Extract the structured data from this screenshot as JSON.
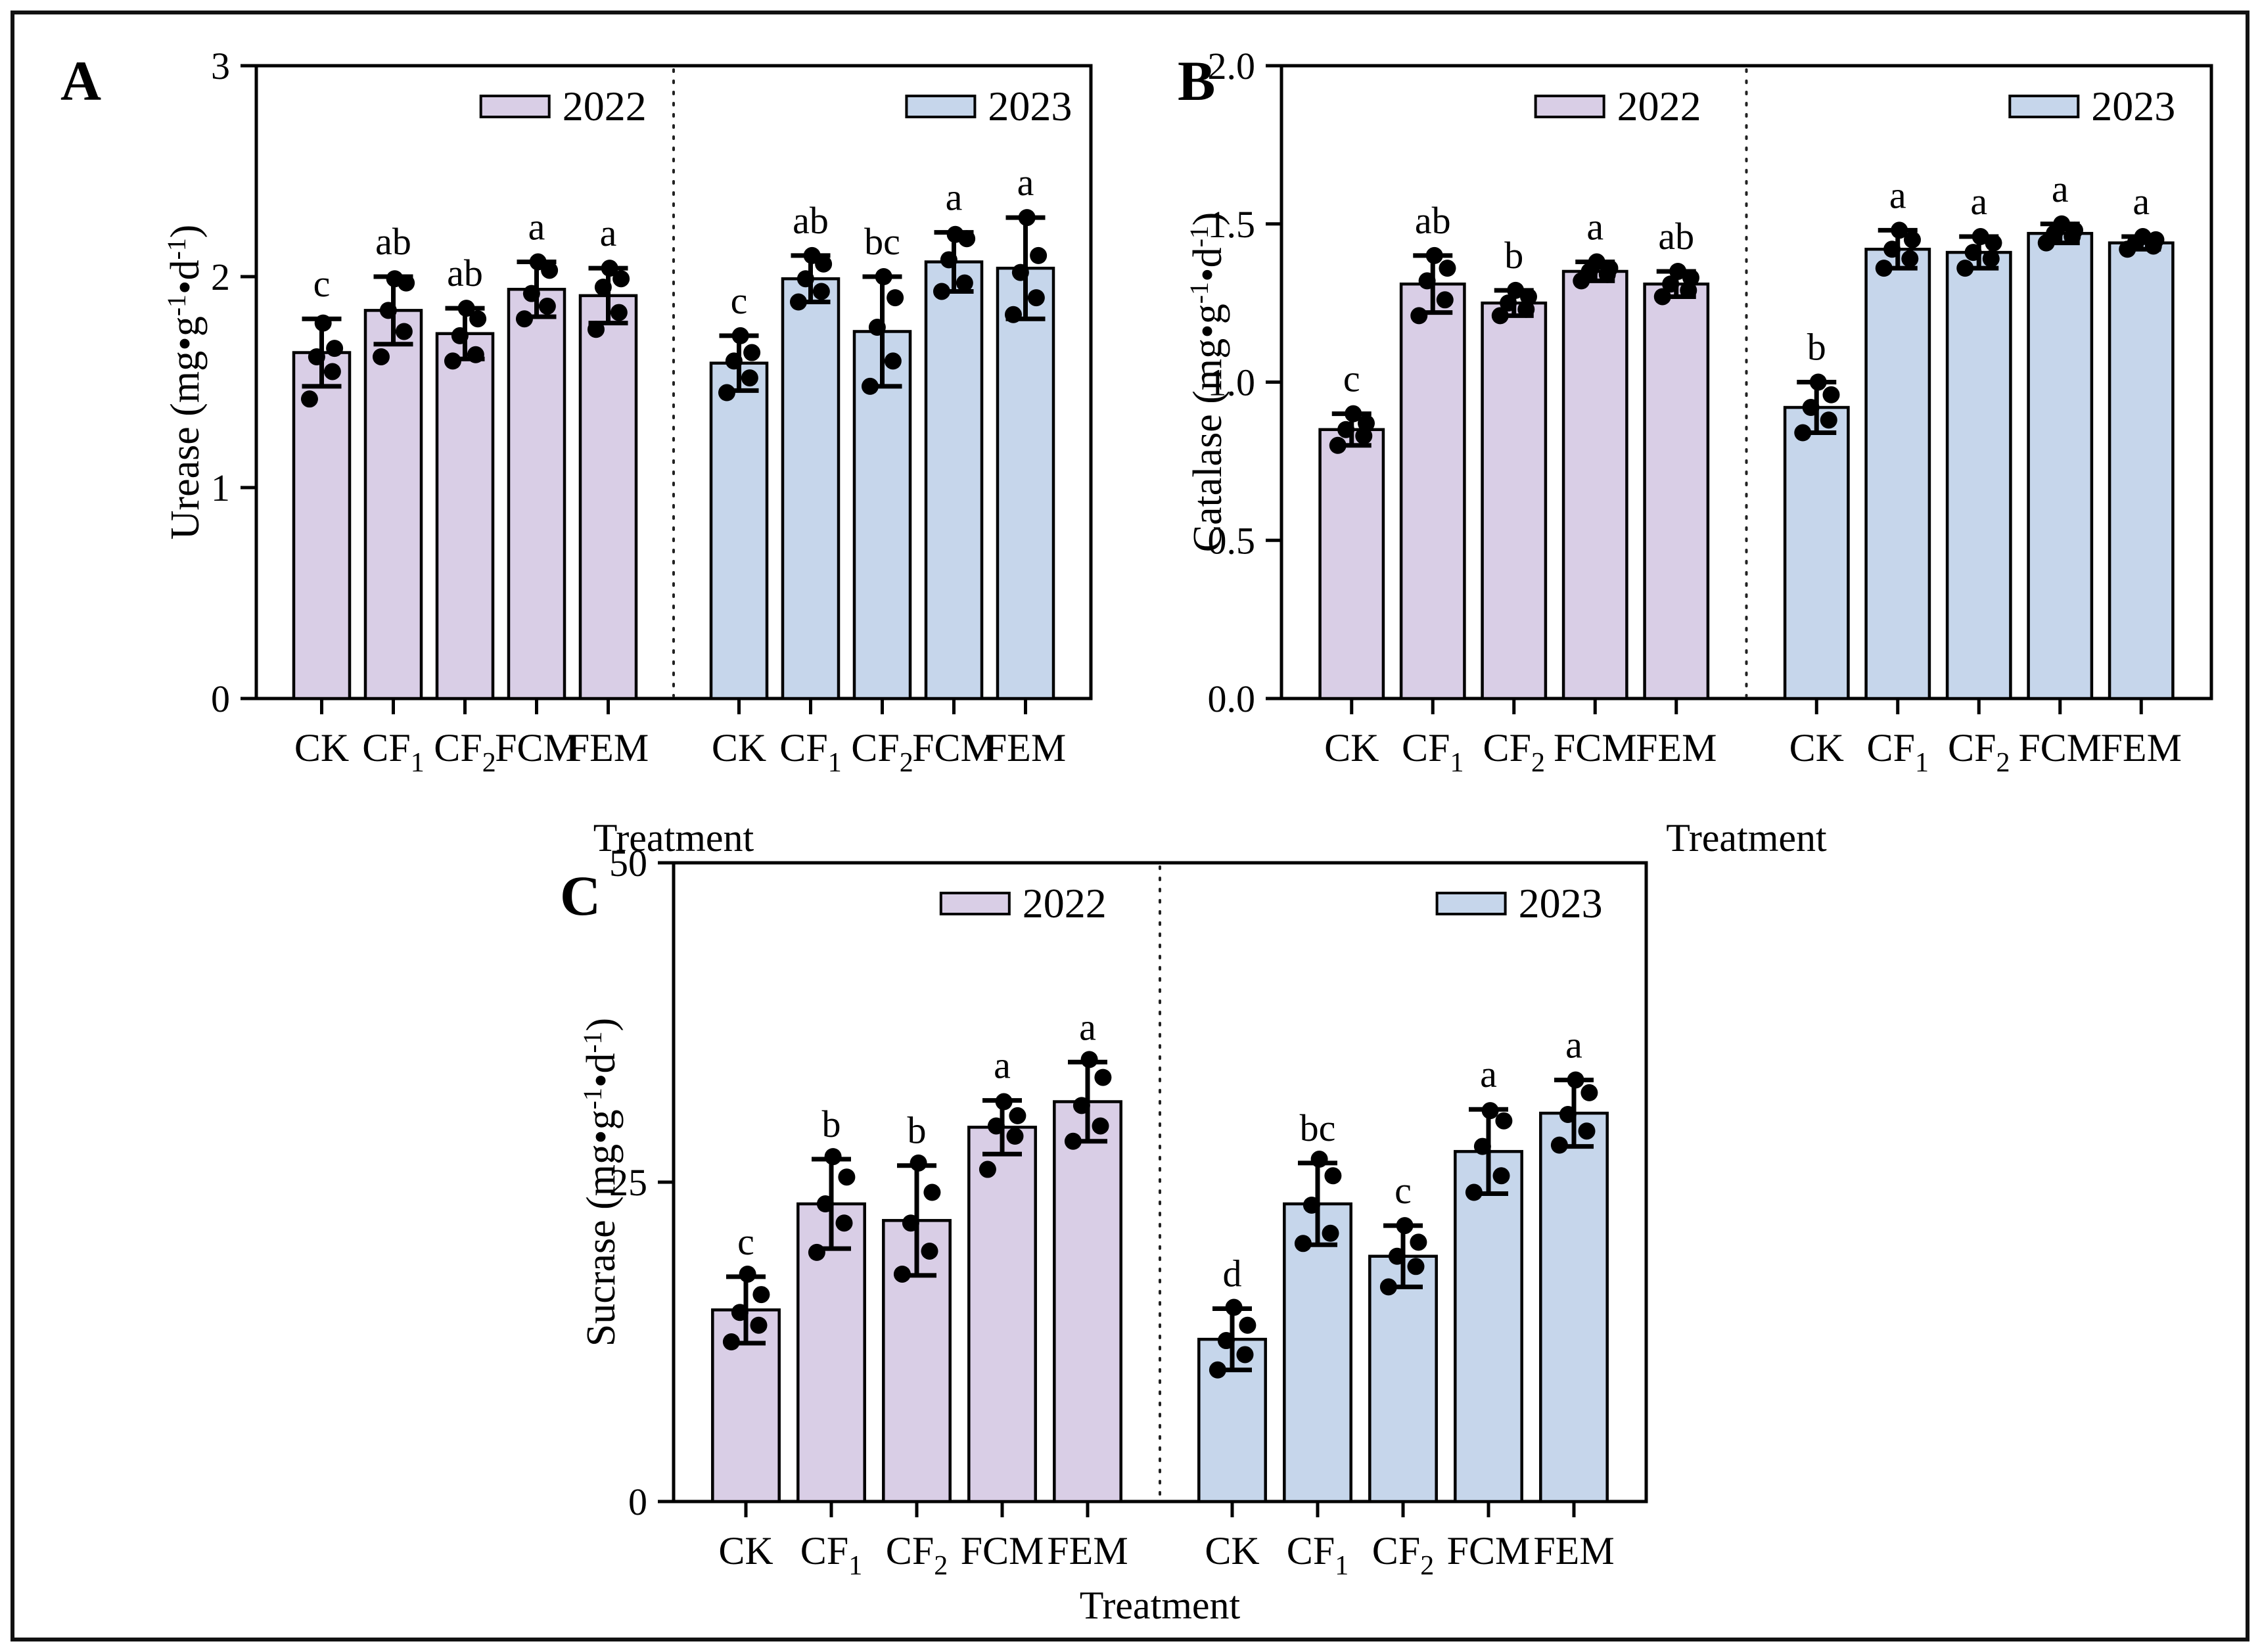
{
  "figure": {
    "panel_labels": [
      "A",
      "B",
      "C"
    ],
    "background": "#ffffff",
    "border_color": "#111111"
  },
  "legend": {
    "year_2022": "2022",
    "year_2023": "2023"
  },
  "colors": {
    "bar_2022": "#d9cee6",
    "bar_2023": "#c6d6eb",
    "stroke": "#000000",
    "separator": "#222222"
  },
  "chart_data": [
    {
      "id": "A",
      "type": "bar",
      "ylabel_parts": [
        {
          "t": "Urease (mg•g"
        },
        {
          "t": "-1",
          "sup": true
        },
        {
          "t": "•d"
        },
        {
          "t": "-1",
          "sup": true
        },
        {
          "t": ")"
        }
      ],
      "xlabel": "Treatment",
      "ylim": [
        0,
        3
      ],
      "yticks": [
        "0",
        "1",
        "2",
        "3"
      ],
      "categories": [
        [
          {
            "t": "CK"
          }
        ],
        [
          {
            "t": "CF"
          },
          {
            "t": "1",
            "sub": true
          }
        ],
        [
          {
            "t": "CF"
          },
          {
            "t": "2",
            "sub": true
          }
        ],
        [
          {
            "t": "FCM"
          }
        ],
        [
          {
            "t": "FEM"
          }
        ]
      ],
      "series": [
        {
          "name": "2022",
          "color": "#d9cee6",
          "values": [
            1.64,
            1.84,
            1.73,
            1.94,
            1.91
          ],
          "errors": [
            0.16,
            0.16,
            0.12,
            0.13,
            0.13
          ],
          "letters": [
            "c",
            "ab",
            "ab",
            "a",
            "a"
          ],
          "points": [
            [
              1.42,
              1.55,
              1.62,
              1.66,
              1.78
            ],
            [
              1.62,
              1.74,
              1.84,
              1.97,
              1.99
            ],
            [
              1.6,
              1.63,
              1.72,
              1.8,
              1.85
            ],
            [
              1.8,
              1.86,
              1.92,
              2.03,
              2.07
            ],
            [
              1.75,
              1.83,
              1.95,
              1.99,
              2.04
            ]
          ]
        },
        {
          "name": "2023",
          "color": "#c6d6eb",
          "values": [
            1.59,
            1.99,
            1.74,
            2.07,
            2.04
          ],
          "errors": [
            0.13,
            0.11,
            0.26,
            0.14,
            0.24
          ],
          "letters": [
            "c",
            "ab",
            "bc",
            "a",
            "a"
          ],
          "points": [
            [
              1.45,
              1.52,
              1.6,
              1.64,
              1.72
            ],
            [
              1.88,
              1.93,
              1.99,
              2.06,
              2.1
            ],
            [
              1.48,
              1.6,
              1.76,
              1.9,
              2.0
            ],
            [
              1.93,
              1.97,
              2.08,
              2.18,
              2.2
            ],
            [
              1.82,
              1.9,
              2.02,
              2.1,
              2.28
            ]
          ]
        }
      ]
    },
    {
      "id": "B",
      "type": "bar",
      "ylabel_parts": [
        {
          "t": "Catalase (mg•g"
        },
        {
          "t": "-1",
          "sup": true
        },
        {
          "t": "•d"
        },
        {
          "t": "-1",
          "sup": true
        },
        {
          "t": ")"
        }
      ],
      "xlabel": "Treatment",
      "ylim": [
        0,
        2
      ],
      "yticks": [
        "0.0",
        "0.5",
        "1.0",
        "1.5",
        "2.0"
      ],
      "categories": [
        [
          {
            "t": "CK"
          }
        ],
        [
          {
            "t": "CF"
          },
          {
            "t": "1",
            "sub": true
          }
        ],
        [
          {
            "t": "CF"
          },
          {
            "t": "2",
            "sub": true
          }
        ],
        [
          {
            "t": "FCM"
          }
        ],
        [
          {
            "t": "FEM"
          }
        ]
      ],
      "series": [
        {
          "name": "2022",
          "color": "#d9cee6",
          "values": [
            0.85,
            1.31,
            1.25,
            1.35,
            1.31
          ],
          "errors": [
            0.05,
            0.09,
            0.04,
            0.03,
            0.04
          ],
          "letters": [
            "c",
            "ab",
            "b",
            "a",
            "ab"
          ],
          "points": [
            [
              0.8,
              0.83,
              0.85,
              0.87,
              0.9
            ],
            [
              1.21,
              1.26,
              1.32,
              1.36,
              1.4
            ],
            [
              1.21,
              1.23,
              1.25,
              1.27,
              1.29
            ],
            [
              1.32,
              1.34,
              1.35,
              1.36,
              1.38
            ],
            [
              1.27,
              1.29,
              1.31,
              1.33,
              1.35
            ]
          ]
        },
        {
          "name": "2023",
          "color": "#c6d6eb",
          "values": [
            0.92,
            1.42,
            1.41,
            1.47,
            1.44
          ],
          "errors": [
            0.08,
            0.06,
            0.05,
            0.03,
            0.02
          ],
          "letters": [
            "b",
            "a",
            "a",
            "a",
            "a"
          ],
          "points": [
            [
              0.84,
              0.88,
              0.92,
              0.96,
              1.0
            ],
            [
              1.36,
              1.39,
              1.42,
              1.45,
              1.48
            ],
            [
              1.36,
              1.39,
              1.41,
              1.44,
              1.46
            ],
            [
              1.44,
              1.46,
              1.47,
              1.48,
              1.5
            ],
            [
              1.42,
              1.43,
              1.44,
              1.45,
              1.46
            ]
          ]
        }
      ]
    },
    {
      "id": "C",
      "type": "bar",
      "ylabel_parts": [
        {
          "t": "Sucrase (mg•g"
        },
        {
          "t": "-1",
          "sup": true
        },
        {
          "t": "•d"
        },
        {
          "t": "-1",
          "sup": true
        },
        {
          "t": ")"
        }
      ],
      "xlabel": "Treatment",
      "ylim": [
        0,
        50
      ],
      "yticks": [
        "0",
        "25",
        "50"
      ],
      "categories": [
        [
          {
            "t": "CK"
          }
        ],
        [
          {
            "t": "CF"
          },
          {
            "t": "1",
            "sub": true
          }
        ],
        [
          {
            "t": "CF"
          },
          {
            "t": "2",
            "sub": true
          }
        ],
        [
          {
            "t": "FCM"
          }
        ],
        [
          {
            "t": "FEM"
          }
        ]
      ],
      "series": [
        {
          "name": "2022",
          "color": "#d9cee6",
          "values": [
            15.0,
            23.3,
            22.0,
            29.3,
            31.3
          ],
          "errors": [
            2.6,
            3.5,
            4.3,
            2.1,
            3.1
          ],
          "letters": [
            "c",
            "b",
            "b",
            "a",
            "a"
          ],
          "points": [
            [
              12.5,
              13.8,
              14.8,
              16.2,
              17.8
            ],
            [
              19.5,
              21.8,
              23.3,
              25.4,
              27.0
            ],
            [
              17.8,
              19.6,
              21.8,
              24.2,
              26.5
            ],
            [
              26.0,
              28.6,
              29.4,
              30.2,
              31.3
            ],
            [
              28.2,
              29.4,
              31.0,
              33.2,
              34.6
            ]
          ]
        },
        {
          "name": "2023",
          "color": "#c6d6eb",
          "values": [
            12.7,
            23.3,
            19.2,
            27.4,
            30.4
          ],
          "errors": [
            2.4,
            3.2,
            2.4,
            3.3,
            2.6
          ],
          "letters": [
            "d",
            "bc",
            "c",
            "a",
            "a"
          ],
          "points": [
            [
              10.3,
              11.5,
              12.6,
              13.8,
              15.2
            ],
            [
              20.2,
              21.0,
              23.2,
              25.5,
              26.8
            ],
            [
              16.8,
              18.4,
              19.2,
              20.3,
              21.6
            ],
            [
              24.2,
              25.5,
              27.8,
              29.8,
              30.6
            ],
            [
              27.9,
              29.0,
              30.3,
              32.0,
              33.0
            ]
          ]
        }
      ]
    }
  ]
}
